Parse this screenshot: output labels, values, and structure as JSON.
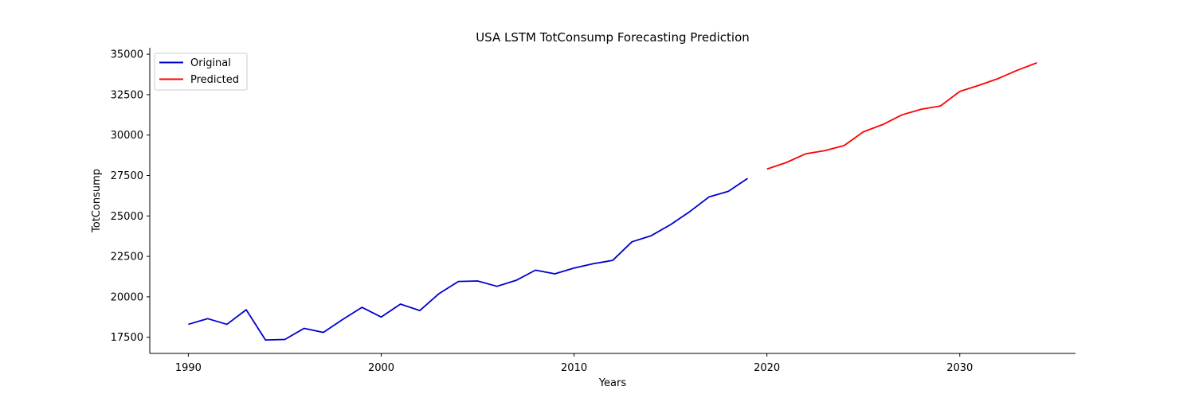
{
  "chart_data": {
    "type": "line",
    "title": "USA LSTM TotConsump Forecasting Prediction",
    "xlabel": "Years",
    "ylabel": "TotConsump",
    "xlim": [
      1988,
      2036
    ],
    "ylim": [
      16500,
      35400
    ],
    "xticks": [
      1990,
      2000,
      2010,
      2020,
      2030
    ],
    "yticks": [
      17500,
      20000,
      22500,
      25000,
      27500,
      30000,
      32500,
      35000
    ],
    "grid": false,
    "legend": "top-left",
    "series": [
      {
        "name": "Original",
        "color": "#0000cd",
        "x": [
          1990,
          1991,
          1992,
          1993,
          1994,
          1995,
          1996,
          1997,
          1998,
          1999,
          2000,
          2001,
          2002,
          2003,
          2004,
          2005,
          2006,
          2007,
          2008,
          2009,
          2010,
          2011,
          2012,
          2013,
          2014,
          2015,
          2016,
          2017,
          2018,
          2019
        ],
        "values": [
          18300,
          18650,
          18300,
          19200,
          17330,
          17360,
          18050,
          17800,
          18600,
          19350,
          18750,
          19550,
          19150,
          20200,
          20950,
          20980,
          20650,
          21020,
          21650,
          21420,
          21780,
          22050,
          22250,
          23400,
          23780,
          24460,
          25270,
          26180,
          26520,
          27320
        ]
      },
      {
        "name": "Predicted",
        "color": "#ff0000",
        "x": [
          2020,
          2021,
          2022,
          2023,
          2024,
          2025,
          2026,
          2027,
          2028,
          2029,
          2030,
          2031,
          2032,
          2033,
          2034
        ],
        "values": [
          27900,
          28300,
          28840,
          29040,
          29350,
          30200,
          30650,
          31250,
          31600,
          31800,
          32700,
          33080,
          33500,
          34020,
          34470
        ]
      }
    ]
  }
}
